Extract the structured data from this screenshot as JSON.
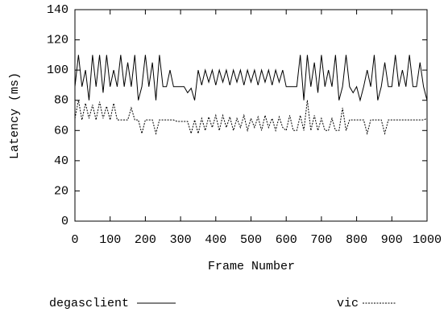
{
  "chart_data": {
    "type": "line",
    "x_label": "Frame Number",
    "y_label": "Latency (ms)",
    "x": [
      0,
      10,
      20,
      30,
      40,
      50,
      60,
      70,
      80,
      90,
      100,
      110,
      120,
      130,
      140,
      150,
      160,
      170,
      180,
      190,
      200,
      210,
      220,
      230,
      240,
      250,
      260,
      270,
      280,
      290,
      300,
      310,
      320,
      330,
      340,
      350,
      360,
      370,
      380,
      390,
      400,
      410,
      420,
      430,
      440,
      450,
      460,
      470,
      480,
      490,
      500,
      510,
      520,
      530,
      540,
      550,
      560,
      570,
      580,
      590,
      600,
      610,
      620,
      630,
      640,
      650,
      660,
      670,
      680,
      690,
      700,
      710,
      720,
      730,
      740,
      750,
      760,
      770,
      780,
      790,
      800,
      810,
      820,
      830,
      840,
      850,
      860,
      870,
      880,
      890,
      900,
      910,
      920,
      930,
      940,
      950,
      960,
      970,
      980,
      990,
      1000
    ],
    "series": [
      {
        "name": "degasclient",
        "color": "#000000",
        "line_style": "solid",
        "values": [
          89,
          110,
          89,
          100,
          80,
          110,
          89,
          110,
          85,
          110,
          89,
          100,
          89,
          110,
          89,
          105,
          89,
          110,
          80,
          89,
          110,
          89,
          105,
          80,
          110,
          89,
          89,
          100,
          89,
          89,
          89,
          89,
          85,
          88,
          80,
          100,
          90,
          100,
          92,
          100,
          90,
          100,
          92,
          100,
          90,
          100,
          92,
          100,
          90,
          100,
          92,
          100,
          90,
          100,
          92,
          100,
          90,
          100,
          92,
          100,
          89,
          89,
          89,
          89,
          110,
          80,
          110,
          89,
          105,
          85,
          110,
          89,
          100,
          89,
          110,
          80,
          89,
          110,
          89,
          85,
          89,
          80,
          89,
          100,
          89,
          110,
          80,
          89,
          105,
          89,
          89,
          110,
          89,
          100,
          89,
          110,
          89,
          89,
          105,
          89,
          80
        ]
      },
      {
        "name": "vic",
        "color": "#000000",
        "line_style": "dotted",
        "values": [
          68,
          80,
          67,
          78,
          68,
          77,
          67,
          79,
          68,
          76,
          67,
          78,
          67,
          67,
          67,
          67,
          75,
          67,
          67,
          58,
          67,
          67,
          67,
          58,
          67,
          67,
          67,
          67,
          67,
          66,
          66,
          66,
          66,
          58,
          67,
          58,
          68,
          60,
          69,
          62,
          70,
          60,
          70,
          62,
          69,
          60,
          68,
          62,
          70,
          60,
          68,
          62,
          69,
          60,
          70,
          62,
          68,
          60,
          69,
          62,
          60,
          70,
          60,
          60,
          70,
          60,
          80,
          60,
          70,
          60,
          68,
          60,
          60,
          68,
          60,
          60,
          75,
          60,
          67,
          67,
          67,
          67,
          67,
          58,
          67,
          67,
          67,
          67,
          58,
          67,
          67,
          67,
          67,
          67,
          67,
          67,
          67,
          67,
          67,
          67,
          68
        ]
      }
    ],
    "xlim": [
      0,
      1000
    ],
    "xticks": [
      0,
      100,
      200,
      300,
      400,
      500,
      600,
      700,
      800,
      900,
      1000
    ],
    "ylim": [
      0,
      140
    ],
    "yticks": [
      0,
      20,
      40,
      60,
      80,
      100,
      120,
      140
    ],
    "grid": false
  }
}
